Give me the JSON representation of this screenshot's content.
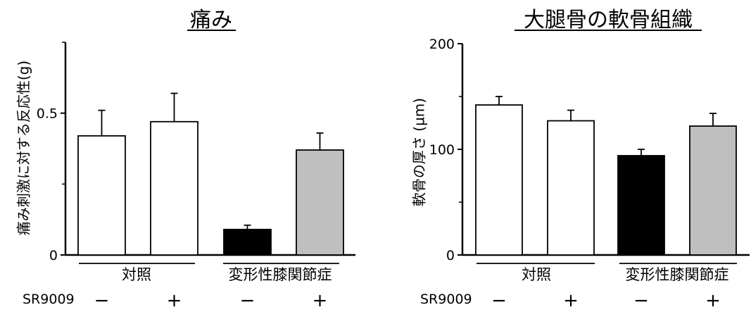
{
  "chart_data": [
    {
      "type": "bar",
      "title": "痛み",
      "ylabel": "痛み刺激に対する反応性(g)",
      "ylim": [
        0,
        0.75
      ],
      "yticks": [
        0,
        0.5
      ],
      "ytick_labels": [
        "0",
        "0.5"
      ],
      "minor_ticks": [
        0.25,
        0.75
      ],
      "groups": [
        {
          "label": "対照",
          "bars": [
            0,
            1
          ]
        },
        {
          "label": "変形性膝関節症",
          "bars": [
            2,
            3
          ]
        }
      ],
      "treatment_label": "SR9009",
      "treatment": [
        "−",
        "+",
        "−",
        "+"
      ],
      "values": [
        0.42,
        0.47,
        0.09,
        0.37
      ],
      "errors": [
        0.09,
        0.1,
        0.015,
        0.06
      ],
      "colors": [
        "#ffffff",
        "#ffffff",
        "#000000",
        "#bfbfbf"
      ]
    },
    {
      "type": "bar",
      "title": "大腿骨の軟骨組織",
      "ylabel": "軟骨の厚さ (µm)",
      "ylim": [
        0,
        200
      ],
      "yticks": [
        0,
        100,
        200
      ],
      "ytick_labels": [
        "0",
        "100",
        "200"
      ],
      "minor_ticks": [
        50,
        150
      ],
      "groups": [
        {
          "label": "対照",
          "bars": [
            0,
            1
          ]
        },
        {
          "label": "変形性膝関節症",
          "bars": [
            2,
            3
          ]
        }
      ],
      "treatment_label": "SR9009",
      "treatment": [
        "−",
        "+",
        "−",
        "+"
      ],
      "values": [
        142,
        127,
        94,
        122
      ],
      "errors": [
        8,
        10,
        6,
        12
      ],
      "colors": [
        "#ffffff",
        "#ffffff",
        "#000000",
        "#bfbfbf"
      ]
    }
  ]
}
